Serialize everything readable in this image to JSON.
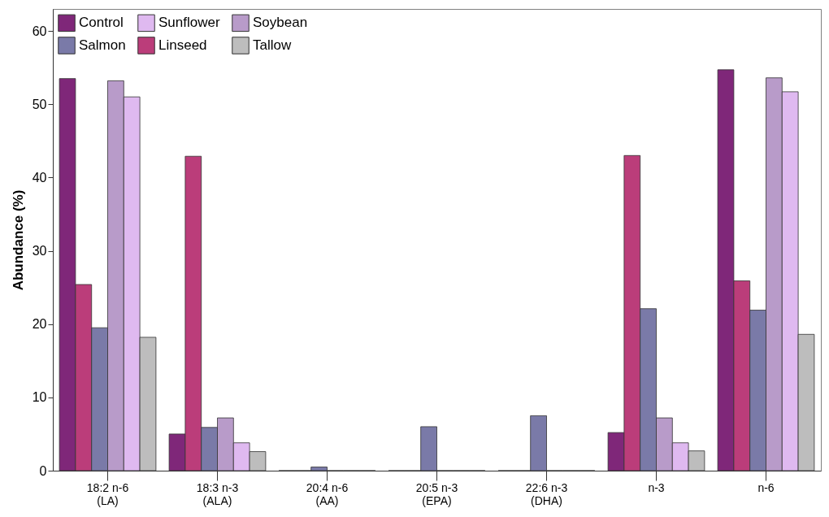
{
  "chart_data": {
    "type": "bar",
    "ylabel": "Abundance (%)",
    "categories": [
      "18:2 n-6\n(LA)",
      "18:3 n-3\n(ALA)",
      "20:4 n-6\n(AA)",
      "20:5 n-3\n(EPA)",
      "22:6 n-3\n(DHA)",
      "n-3",
      "n-6"
    ],
    "series": [
      {
        "name": "Control",
        "color": "#7f2779",
        "values": [
          53.5,
          5.0,
          0,
          0,
          0,
          5.2,
          54.7
        ]
      },
      {
        "name": "Linseed",
        "color": "#bb3d7a",
        "values": [
          25.4,
          42.9,
          0,
          0,
          0,
          43.0,
          25.9
        ]
      },
      {
        "name": "Salmon",
        "color": "#7a7aa8",
        "values": [
          19.5,
          5.9,
          0.5,
          6.0,
          7.5,
          22.1,
          21.9
        ]
      },
      {
        "name": "Soybean",
        "color": "#b89bc9",
        "values": [
          53.2,
          7.2,
          0,
          0,
          0,
          7.2,
          53.6
        ]
      },
      {
        "name": "Sunflower",
        "color": "#dfb9f0",
        "values": [
          51.0,
          3.8,
          0,
          0,
          0,
          3.8,
          51.7
        ]
      },
      {
        "name": "Tallow",
        "color": "#bdbdbd",
        "values": [
          18.2,
          2.6,
          0,
          0,
          0,
          2.7,
          18.6
        ]
      }
    ],
    "ylim": [
      0,
      63
    ],
    "yticks": [
      0,
      10,
      20,
      30,
      40,
      50,
      60
    ],
    "grid": false,
    "legend": "top left"
  }
}
